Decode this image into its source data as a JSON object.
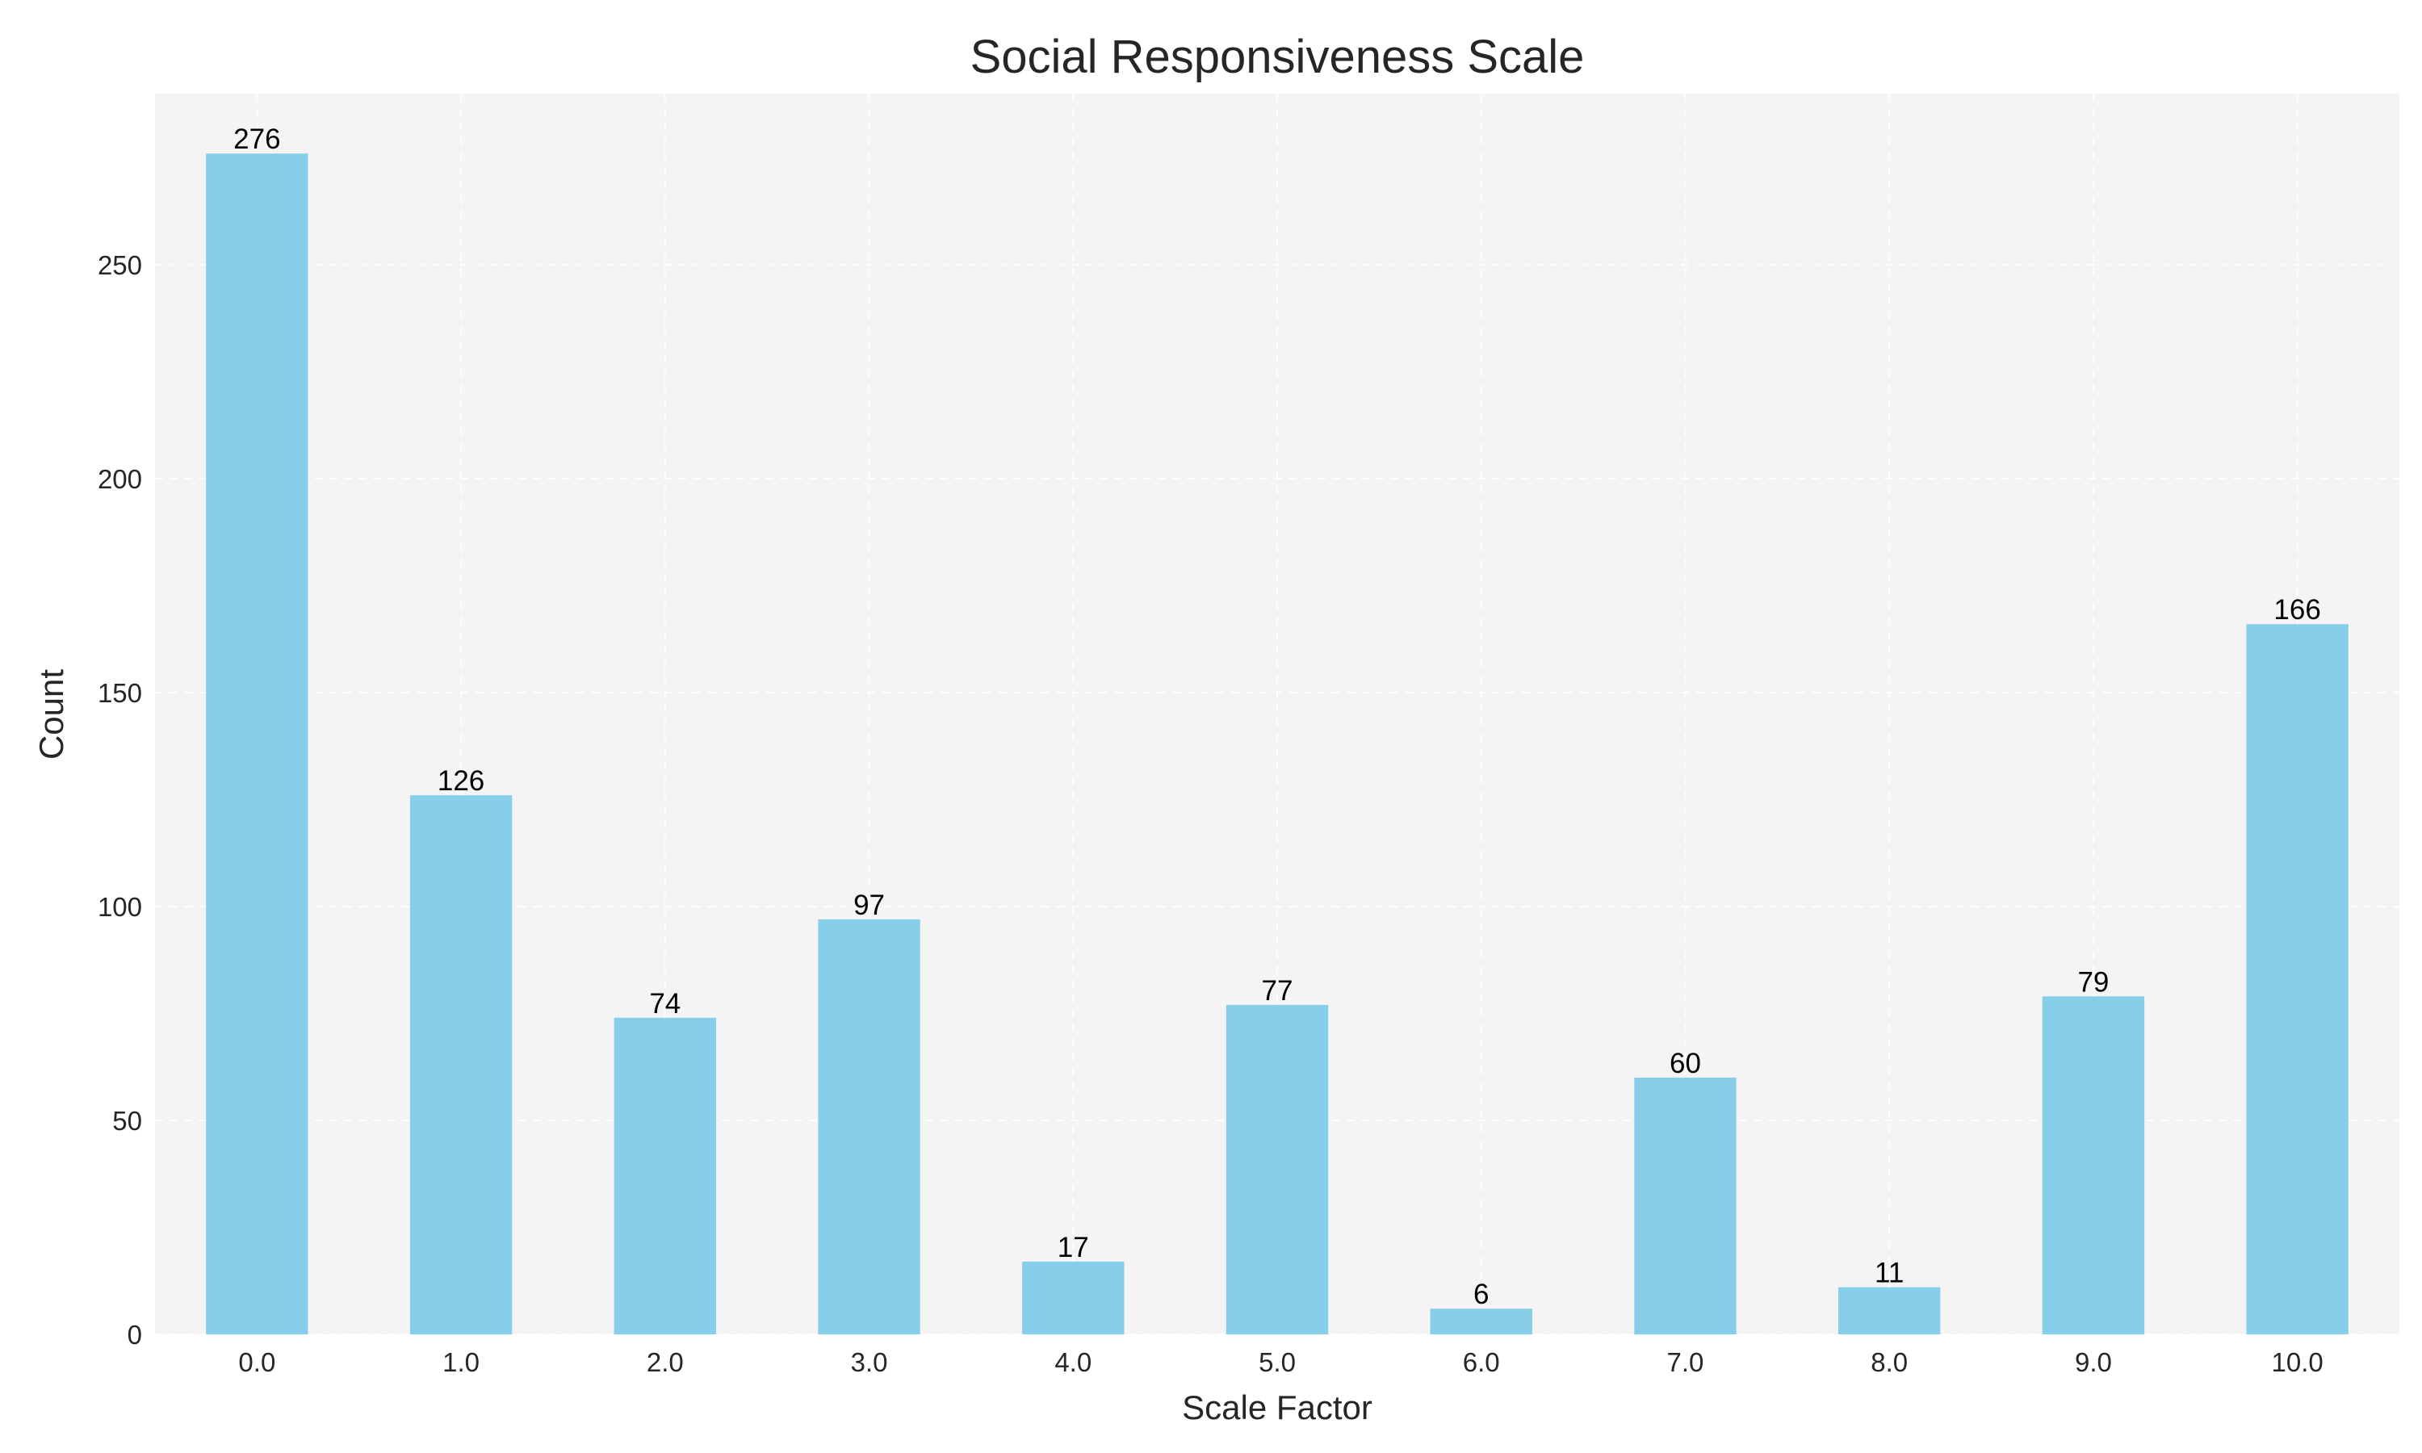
{
  "chart_data": {
    "type": "bar",
    "title": "Social Responsiveness Scale",
    "xlabel": "Scale Factor",
    "ylabel": "Count",
    "categories": [
      "0.0",
      "1.0",
      "2.0",
      "3.0",
      "4.0",
      "5.0",
      "6.0",
      "7.0",
      "8.0",
      "9.0",
      "10.0"
    ],
    "values": [
      276,
      126,
      74,
      97,
      17,
      77,
      6,
      60,
      11,
      79,
      166
    ],
    "ylim": [
      0,
      290
    ],
    "yticks": [
      0,
      50,
      100,
      150,
      200,
      250
    ],
    "grid": true,
    "bar_color": "#87CEEB",
    "plot_background": "#f4f4f4",
    "data_labels": true
  }
}
